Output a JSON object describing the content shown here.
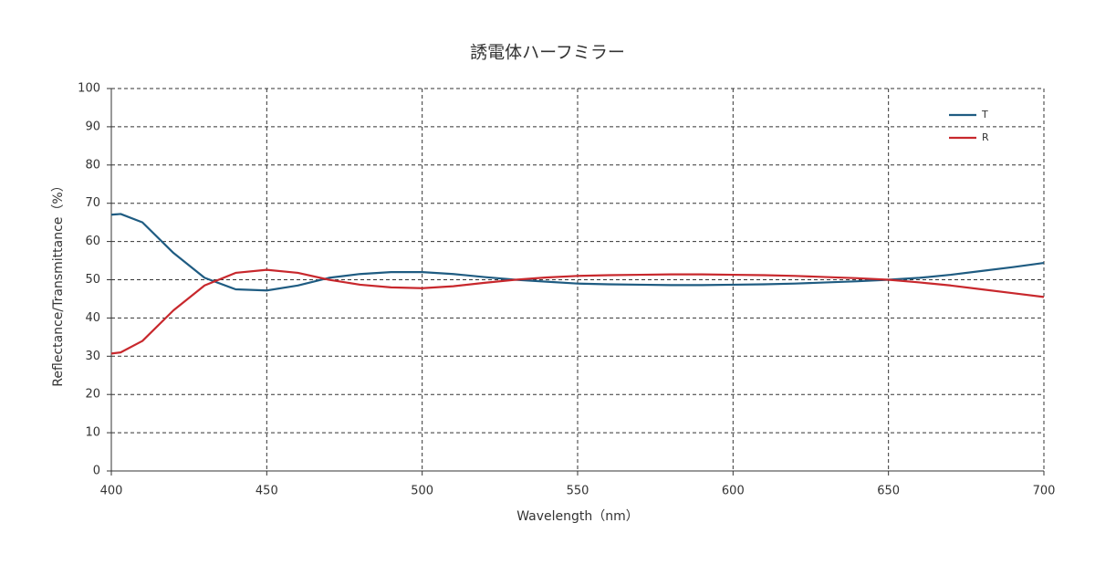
{
  "chart_data": {
    "type": "line",
    "title": "誘電体ハーフミラー",
    "x_label": "Wavelength（nm）",
    "y_label": "Reflectance/Transmittance（%）",
    "x": [
      400,
      403,
      410,
      420,
      430,
      440,
      450,
      460,
      470,
      480,
      490,
      500,
      510,
      520,
      530,
      540,
      550,
      560,
      570,
      580,
      590,
      600,
      610,
      620,
      630,
      640,
      650,
      660,
      670,
      680,
      690,
      700
    ],
    "series": [
      {
        "name": "T",
        "color": "#1f5c82",
        "values": [
          67,
          67.2,
          65,
          57,
          50.5,
          47.5,
          47.2,
          48.5,
          50.5,
          51.5,
          52,
          52,
          51.5,
          50.7,
          50,
          49.5,
          49,
          48.8,
          48.7,
          48.6,
          48.6,
          48.7,
          48.8,
          49,
          49.3,
          49.6,
          50,
          50.5,
          51.3,
          52.3,
          53.3,
          54.4
        ]
      },
      {
        "name": "R",
        "color": "#c8282d",
        "values": [
          30.7,
          31,
          34,
          42,
          48.5,
          51.8,
          52.6,
          51.8,
          50,
          48.7,
          48,
          47.8,
          48.3,
          49.2,
          50,
          50.6,
          51,
          51.2,
          51.3,
          51.4,
          51.4,
          51.3,
          51.2,
          51,
          50.7,
          50.4,
          50,
          49.3,
          48.5,
          47.5,
          46.5,
          45.5
        ]
      }
    ],
    "xlim": [
      400,
      700
    ],
    "xticks": [
      400,
      450,
      500,
      550,
      600,
      650,
      700
    ],
    "ylim": [
      0,
      100
    ],
    "yticks": [
      0,
      10,
      20,
      30,
      40,
      50,
      60,
      70,
      80,
      90,
      100
    ],
    "grid": true,
    "legend": "upper right"
  }
}
